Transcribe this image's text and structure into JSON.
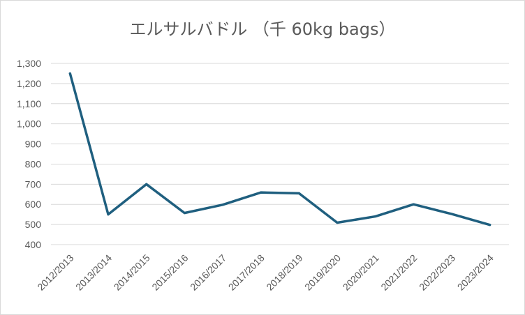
{
  "chart_data": {
    "type": "line",
    "title": "エルサルバドル （千 60kg bags）",
    "xlabel": "",
    "ylabel": "",
    "categories": [
      "2012/2013",
      "2013/2014",
      "2014/2015",
      "2015/2016",
      "2016/2017",
      "2017/2018",
      "2018/2019",
      "2019/2020",
      "2020/2021",
      "2021/2022",
      "2022/2023",
      "2023/2024"
    ],
    "series": [
      {
        "values": [
          1250,
          550,
          700,
          557,
          598,
          659,
          655,
          509,
          540,
          600,
          552,
          498
        ]
      }
    ],
    "ylim": [
      400,
      1300
    ],
    "yticks": [
      400,
      500,
      600,
      700,
      800,
      900,
      1000,
      1100,
      1200,
      1300
    ],
    "ytick_labels": [
      "400",
      "500",
      "600",
      "700",
      "800",
      "900",
      "1,000",
      "1,100",
      "1,200",
      "1,300"
    ],
    "grid": true,
    "legend": "none",
    "colors": {
      "line": "#1f5f7f",
      "grid": "#d9d9d9",
      "text": "#595959"
    }
  }
}
